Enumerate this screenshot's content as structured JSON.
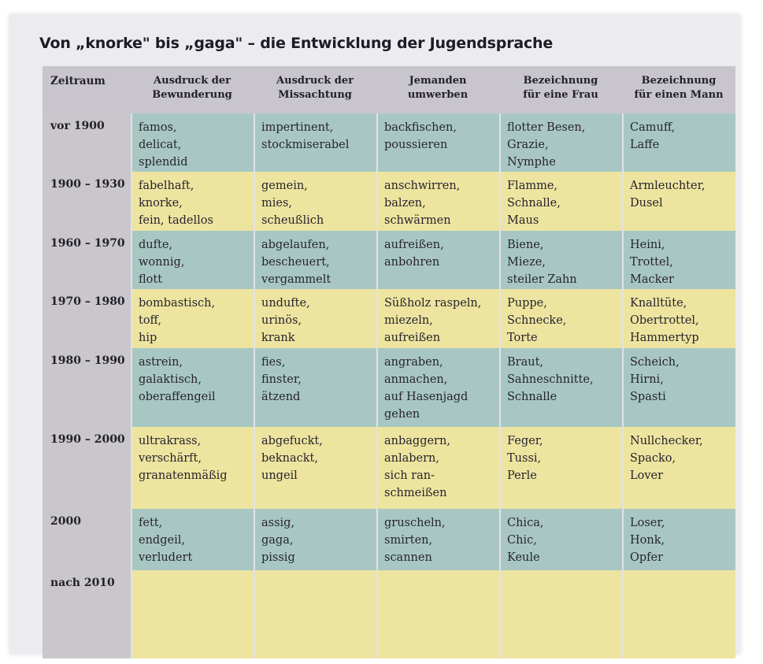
{
  "title": "Von „knorke\" bis „gaga\" – die Entwicklung der Jugendsprache",
  "columns": [
    "Zeitraum",
    [
      "Ausdruck der",
      "Bewunderung"
    ],
    [
      "Ausdruck der",
      "Missachtung"
    ],
    [
      "Jemanden",
      "umwerben"
    ],
    [
      "Bezeichnung",
      "für eine Frau"
    ],
    [
      "Bezeichnung",
      "für einen Mann"
    ]
  ],
  "rows": [
    {
      "zeitraum": "vor 1900",
      "cells": [
        [
          "famos,",
          "delicat,",
          "splendid"
        ],
        [
          "impertinent,",
          "stockmiserabel"
        ],
        [
          "backfischen,",
          "poussieren"
        ],
        [
          "flotter Besen,",
          "Grazie,",
          "Nymphe"
        ],
        [
          "Camuff,",
          "Laffe"
        ]
      ]
    },
    {
      "zeitraum": "1900 – 1930",
      "cells": [
        [
          "fabelhaft,",
          "knorke,",
          "fein, tadellos"
        ],
        [
          "gemein,",
          "mies,",
          "scheußlich"
        ],
        [
          "anschwirren,",
          "balzen,",
          "schwärmen"
        ],
        [
          "Flamme,",
          "Schnalle,",
          "Maus"
        ],
        [
          "Armleuchter,",
          "Dusel"
        ]
      ]
    },
    {
      "zeitraum": "1960 – 1970",
      "cells": [
        [
          "dufte,",
          "wonnig,",
          "flott"
        ],
        [
          "abgelaufen,",
          "bescheuert,",
          "vergammelt"
        ],
        [
          "aufreißen,",
          "anbohren"
        ],
        [
          "Biene,",
          "Mieze,",
          "steiler Zahn"
        ],
        [
          "Heini,",
          "Trottel,",
          "Macker"
        ]
      ]
    },
    {
      "zeitraum": "1970 – 1980",
      "cells": [
        [
          "bombastisch,",
          "toff,",
          "hip"
        ],
        [
          "undufte,",
          "urinös,",
          "krank"
        ],
        [
          "Süßholz raspeln,",
          "miezeln,",
          "aufreißen"
        ],
        [
          "Puppe,",
          "Schnecke,",
          "Torte"
        ],
        [
          "Knalltüte,",
          "Obertrottel,",
          "Hammertyp"
        ]
      ]
    },
    {
      "zeitraum": "1980 – 1990",
      "cells": [
        [
          "astrein,",
          "galaktisch,",
          "oberaffengeil"
        ],
        [
          "fies,",
          "finster,",
          "ätzend"
        ],
        [
          "angraben,",
          "anmachen,",
          "auf Hasenjagd",
          "gehen"
        ],
        [
          "Braut,",
          "Sahneschnitte,",
          "Schnalle"
        ],
        [
          "Scheich,",
          "Hirni,",
          "Spasti"
        ]
      ]
    },
    {
      "zeitraum": "1990 – 2000",
      "cells": [
        [
          "ultrakrass,",
          "verschärft,",
          "granatenmäßig"
        ],
        [
          "abgefuckt,",
          "beknackt,",
          "ungeil"
        ],
        [
          "anbaggern,",
          "anlabern,",
          "sich ran-",
          "schmeißen"
        ],
        [
          "Feger,",
          "Tussi,",
          "Perle"
        ],
        [
          "Nullchecker,",
          "Spacko,",
          "Lover"
        ]
      ]
    },
    {
      "zeitraum": "2000",
      "cells": [
        [
          "fett,",
          "endgeil,",
          "verludert"
        ],
        [
          "assig,",
          "gaga,",
          "pissig"
        ],
        [
          "gruscheln,",
          "smirten,",
          "scannen"
        ],
        [
          "Chica,",
          "Chic,",
          "Keule"
        ],
        [
          "Loser,",
          "Honk,",
          "Opfer"
        ]
      ]
    },
    {
      "zeitraum": "nach 2010",
      "cells": [
        [],
        [],
        [],
        [],
        []
      ]
    }
  ]
}
